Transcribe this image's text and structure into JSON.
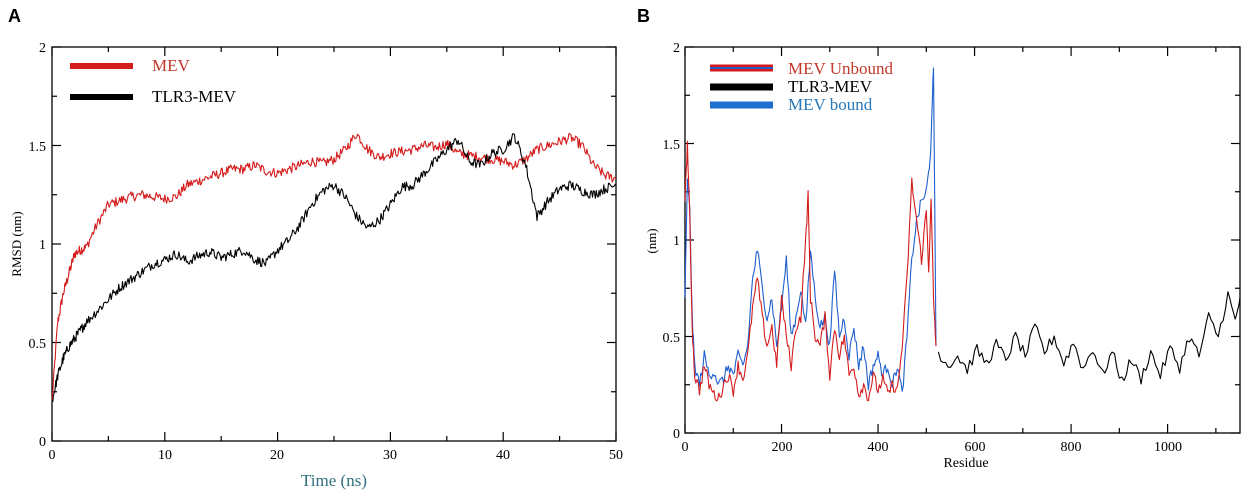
{
  "chart_data": [
    {
      "type": "line",
      "panel": "A",
      "xlabel": "Time (ns)",
      "ylabel": "RMSD (nm)",
      "xlim": [
        0,
        50
      ],
      "ylim": [
        0,
        2
      ],
      "xticks": [
        0,
        10,
        20,
        30,
        40,
        50
      ],
      "yticks": [
        0,
        0.5,
        1,
        1.5,
        2
      ],
      "xlabel_color": "#2f6f7d",
      "legend": [
        {
          "name": "MEV",
          "color": "#d41c1c",
          "text_color": "#c0392b"
        },
        {
          "name": "TLR3-MEV",
          "color": "#000000",
          "text_color": "#000000"
        }
      ],
      "series": [
        {
          "name": "MEV",
          "color": "#d41c1c",
          "x": [
            0,
            0.5,
            1,
            1.5,
            2,
            2.5,
            3,
            4,
            5,
            6,
            7,
            8,
            9,
            10,
            11,
            12,
            13,
            14,
            15,
            16,
            17,
            18,
            19,
            20,
            21,
            22,
            23,
            24,
            25,
            26,
            27,
            28,
            29,
            30,
            31,
            32,
            33,
            34,
            35,
            36,
            37,
            38,
            39,
            40,
            41,
            42,
            43,
            44,
            45,
            46,
            47,
            48,
            49,
            50
          ],
          "values": [
            0.2,
            0.6,
            0.75,
            0.85,
            0.95,
            0.97,
            0.98,
            1.1,
            1.2,
            1.22,
            1.24,
            1.25,
            1.24,
            1.23,
            1.24,
            1.3,
            1.32,
            1.34,
            1.36,
            1.38,
            1.38,
            1.4,
            1.37,
            1.36,
            1.38,
            1.4,
            1.42,
            1.41,
            1.43,
            1.48,
            1.56,
            1.48,
            1.44,
            1.46,
            1.47,
            1.48,
            1.5,
            1.49,
            1.51,
            1.46,
            1.45,
            1.44,
            1.43,
            1.42,
            1.4,
            1.43,
            1.48,
            1.5,
            1.52,
            1.54,
            1.5,
            1.4,
            1.35,
            1.33
          ]
        },
        {
          "name": "TLR3-MEV",
          "color": "#000000",
          "x": [
            0,
            0.5,
            1,
            1.5,
            2,
            2.5,
            3,
            4,
            5,
            6,
            7,
            8,
            9,
            10,
            11,
            12,
            13,
            14,
            15,
            16,
            17,
            18,
            19,
            20,
            21,
            22,
            23,
            24,
            25,
            26,
            27,
            28,
            29,
            30,
            31,
            32,
            33,
            34,
            35,
            36,
            37,
            38,
            39,
            40,
            41,
            42,
            43,
            44,
            45,
            46,
            47,
            48,
            49,
            50
          ],
          "values": [
            0.2,
            0.33,
            0.42,
            0.48,
            0.52,
            0.56,
            0.6,
            0.66,
            0.72,
            0.78,
            0.82,
            0.86,
            0.9,
            0.92,
            0.95,
            0.91,
            0.94,
            0.96,
            0.93,
            0.95,
            0.97,
            0.92,
            0.9,
            0.97,
            1.02,
            1.1,
            1.2,
            1.27,
            1.3,
            1.24,
            1.14,
            1.08,
            1.12,
            1.2,
            1.29,
            1.3,
            1.36,
            1.42,
            1.48,
            1.53,
            1.42,
            1.4,
            1.46,
            1.48,
            1.55,
            1.4,
            1.14,
            1.22,
            1.28,
            1.3,
            1.27,
            1.25,
            1.28,
            1.3
          ]
        }
      ]
    },
    {
      "type": "line",
      "panel": "B",
      "xlabel": "Residue",
      "ylabel": "(nm)",
      "xlim": [
        0,
        1150
      ],
      "ylim": [
        0,
        2
      ],
      "xticks": [
        0,
        200,
        400,
        600,
        800,
        1000
      ],
      "yticks": [
        0,
        0.5,
        1,
        1.5,
        2
      ],
      "legend": [
        {
          "name": "MEV Unbound",
          "color": "#d41c1c",
          "text_color": "#c0392b"
        },
        {
          "name": "TLR3-MEV",
          "color": "#000000",
          "text_color": "#000000"
        },
        {
          "name": "MEV bound",
          "color": "#1f5fcf",
          "text_color": "#2a78b8"
        }
      ],
      "series": [
        {
          "name": "TLR3-MEV",
          "color": "#000000",
          "x": [
            525,
            545,
            565,
            585,
            605,
            625,
            645,
            665,
            685,
            705,
            725,
            745,
            765,
            785,
            805,
            825,
            845,
            865,
            885,
            905,
            925,
            945,
            965,
            985,
            1005,
            1025,
            1045,
            1065,
            1085,
            1105,
            1125,
            1140,
            1150
          ],
          "values": [
            0.42,
            0.35,
            0.4,
            0.33,
            0.43,
            0.36,
            0.46,
            0.38,
            0.5,
            0.4,
            0.55,
            0.42,
            0.5,
            0.36,
            0.47,
            0.33,
            0.44,
            0.3,
            0.42,
            0.27,
            0.38,
            0.28,
            0.42,
            0.3,
            0.44,
            0.34,
            0.5,
            0.4,
            0.6,
            0.5,
            0.72,
            0.58,
            0.7
          ]
        },
        {
          "name": "MEV bound",
          "color": "#1f5fcf",
          "x": [
            0,
            5,
            10,
            15,
            20,
            30,
            40,
            50,
            60,
            70,
            80,
            90,
            100,
            110,
            120,
            130,
            140,
            150,
            160,
            170,
            180,
            190,
            200,
            210,
            220,
            230,
            240,
            250,
            260,
            270,
            280,
            290,
            300,
            310,
            320,
            330,
            340,
            350,
            360,
            370,
            380,
            390,
            400,
            410,
            420,
            430,
            440,
            450,
            460,
            470,
            480,
            490,
            500,
            505,
            510,
            515,
            520
          ],
          "values": [
            0.7,
            1.3,
            1.15,
            0.6,
            0.35,
            0.25,
            0.4,
            0.3,
            0.32,
            0.25,
            0.28,
            0.35,
            0.3,
            0.4,
            0.35,
            0.45,
            0.8,
            0.95,
            0.75,
            0.6,
            0.7,
            0.45,
            0.65,
            0.9,
            0.5,
            0.6,
            0.75,
            0.55,
            0.95,
            0.7,
            0.55,
            0.6,
            0.45,
            0.85,
            0.5,
            0.6,
            0.4,
            0.55,
            0.35,
            0.45,
            0.25,
            0.35,
            0.4,
            0.3,
            0.35,
            0.25,
            0.35,
            0.2,
            0.5,
            0.9,
            1.1,
            1.2,
            1.25,
            1.35,
            1.5,
            1.9,
            0.45
          ]
        },
        {
          "name": "MEV Unbound",
          "color": "#d41c1c",
          "x": [
            0,
            5,
            10,
            15,
            20,
            30,
            40,
            50,
            60,
            70,
            80,
            90,
            100,
            110,
            120,
            130,
            140,
            150,
            160,
            170,
            180,
            190,
            200,
            210,
            220,
            230,
            240,
            250,
            255,
            260,
            270,
            280,
            290,
            300,
            310,
            320,
            330,
            340,
            350,
            360,
            370,
            380,
            390,
            400,
            410,
            420,
            430,
            440,
            450,
            460,
            470,
            480,
            490,
            500,
            505,
            510,
            515,
            520
          ],
          "values": [
            1.2,
            1.5,
            1.1,
            0.55,
            0.3,
            0.22,
            0.35,
            0.25,
            0.2,
            0.18,
            0.25,
            0.3,
            0.22,
            0.35,
            0.28,
            0.4,
            0.65,
            0.8,
            0.6,
            0.45,
            0.55,
            0.35,
            0.7,
            0.5,
            0.35,
            0.55,
            0.6,
            1.0,
            1.23,
            0.7,
            0.5,
            0.45,
            0.6,
            0.3,
            0.55,
            0.4,
            0.5,
            0.3,
            0.35,
            0.2,
            0.25,
            0.18,
            0.3,
            0.22,
            0.28,
            0.2,
            0.25,
            0.22,
            0.45,
            0.8,
            1.3,
            1.1,
            0.9,
            1.15,
            0.85,
            1.2,
            0.7,
            0.45
          ]
        }
      ]
    }
  ],
  "panels": {
    "a": {
      "letter": "A",
      "xlabel": "Time (ns)",
      "ylabel": "RMSD (nm)",
      "xtick_labels": [
        "0",
        "10",
        "20",
        "30",
        "40",
        "50"
      ],
      "ytick_labels": [
        "0",
        "0.5",
        "1",
        "1.5",
        "2"
      ],
      "legend": [
        "MEV",
        "TLR3-MEV"
      ]
    },
    "b": {
      "letter": "B",
      "xlabel": "Residue",
      "ylabel": "(nm)",
      "xtick_labels": [
        "0",
        "200",
        "400",
        "600",
        "800",
        "1000"
      ],
      "ytick_labels": [
        "0",
        "0.5",
        "1",
        "1.5",
        "2"
      ],
      "legend": [
        "MEV Unbound",
        "TLR3-MEV",
        "MEV bound"
      ]
    }
  }
}
